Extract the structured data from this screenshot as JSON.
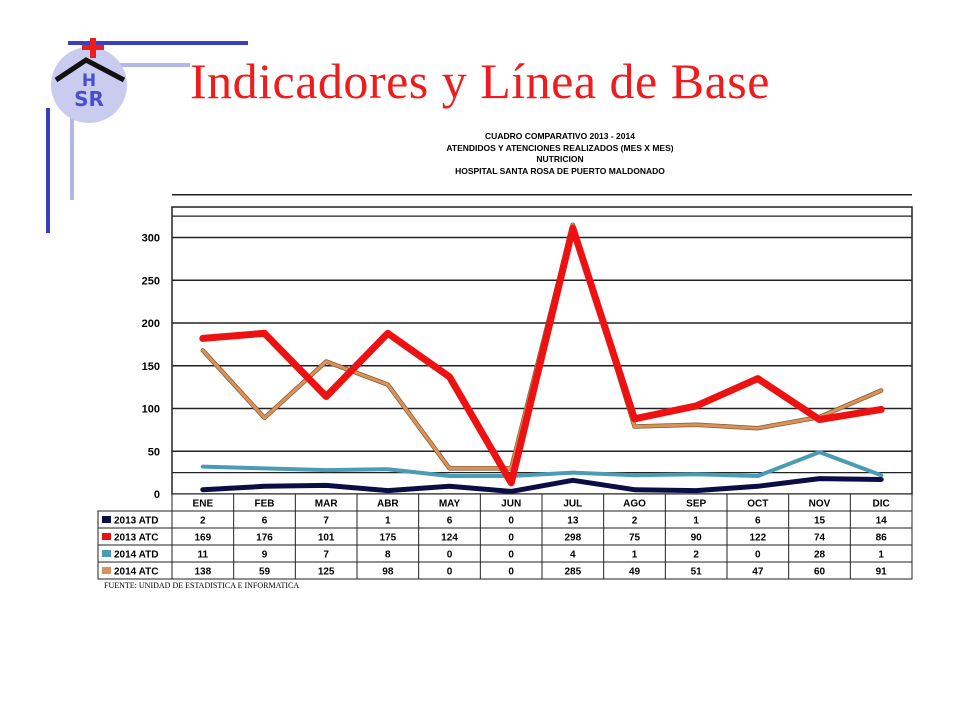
{
  "slide": {
    "title": "Indicadores y Línea de Base",
    "logo_text": "HSR",
    "source_note": "FUENTE: UNIDAD DE ESTADISTICA E INFORMATICA",
    "colors": {
      "title": "#ee1c1c",
      "accent_bar": "#3a3fc1",
      "accent_bar_light": "#b3b6e8"
    }
  },
  "chart_data": {
    "type": "line",
    "title_lines": [
      "CUADRO COMPARATIVO 2013 - 2014",
      "ATENDIDOS Y ATENCIONES  REALIZADOS  (MES X MES)",
      "NUTRICION",
      "HOSPITAL  SANTA ROSA DE PUERTO MALDONADO"
    ],
    "categories": [
      "ENE",
      "FEB",
      "MAR",
      "ABR",
      "MAY",
      "JUN",
      "JUL",
      "AGO",
      "SEP",
      "OCT",
      "NOV",
      "DIC"
    ],
    "ylim": [
      0,
      350
    ],
    "yticks": [
      0,
      50,
      100,
      150,
      200,
      250,
      300
    ],
    "grid": true,
    "legend": "data-table-below",
    "series": [
      {
        "name": "2013 ATD",
        "color": "#0d0d45",
        "values": [
          2,
          6,
          7,
          1,
          6,
          0,
          13,
          2,
          1,
          6,
          15,
          14
        ],
        "plotted": [
          5,
          9,
          10,
          4,
          9,
          3,
          16,
          5,
          4,
          9,
          18,
          17
        ]
      },
      {
        "name": "2013 ATC",
        "color": "#ee1111",
        "values": [
          169,
          176,
          101,
          175,
          124,
          0,
          298,
          75,
          90,
          122,
          74,
          86
        ],
        "plotted": [
          182,
          188,
          114,
          188,
          137,
          13,
          311,
          88,
          103,
          135,
          87,
          99
        ]
      },
      {
        "name": "2014 ATD",
        "color": "#4a9cb4",
        "values": [
          11,
          9,
          7,
          8,
          0,
          0,
          4,
          1,
          2,
          0,
          28,
          1
        ],
        "plotted": [
          32,
          30,
          28,
          29,
          21,
          21,
          25,
          22,
          23,
          21,
          49,
          22
        ]
      },
      {
        "name": "2014 ATC",
        "color": "#d9935a",
        "values": [
          138,
          59,
          125,
          98,
          0,
          0,
          285,
          49,
          51,
          47,
          60,
          91
        ],
        "plotted": [
          168,
          89,
          155,
          128,
          30,
          30,
          315,
          79,
          81,
          77,
          90,
          121
        ]
      }
    ]
  }
}
